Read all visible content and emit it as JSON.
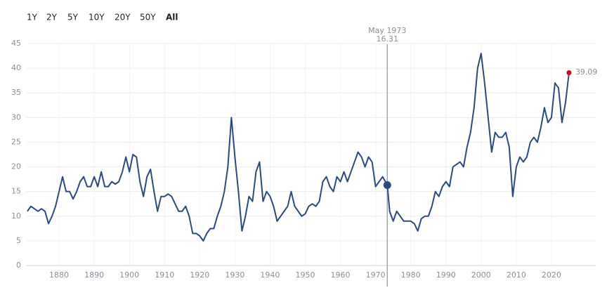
{
  "range_buttons": [
    "1Y",
    "2Y",
    "5Y",
    "10Y",
    "20Y",
    "50Y",
    "All"
  ],
  "selected_range": 6,
  "chart_data": {
    "type": "line",
    "x": [
      1871,
      1872,
      1873,
      1874,
      1875,
      1876,
      1877,
      1878,
      1879,
      1880,
      1881,
      1882,
      1883,
      1884,
      1885,
      1886,
      1887,
      1888,
      1889,
      1890,
      1891,
      1892,
      1893,
      1894,
      1895,
      1896,
      1897,
      1898,
      1899,
      1900,
      1901,
      1902,
      1903,
      1904,
      1905,
      1906,
      1907,
      1908,
      1909,
      1910,
      1911,
      1912,
      1913,
      1914,
      1915,
      1916,
      1917,
      1918,
      1919,
      1920,
      1921,
      1922,
      1923,
      1924,
      1925,
      1926,
      1927,
      1928,
      1929,
      1930,
      1931,
      1932,
      1933,
      1934,
      1935,
      1936,
      1937,
      1938,
      1939,
      1940,
      1941,
      1942,
      1943,
      1944,
      1945,
      1946,
      1947,
      1948,
      1949,
      1950,
      1951,
      1952,
      1953,
      1954,
      1955,
      1956,
      1957,
      1958,
      1959,
      1960,
      1961,
      1962,
      1963,
      1964,
      1965,
      1966,
      1967,
      1968,
      1969,
      1970,
      1971,
      1972,
      1973.33,
      1974,
      1975,
      1976,
      1977,
      1978,
      1979,
      1980,
      1981,
      1982,
      1983,
      1984,
      1985,
      1986,
      1987,
      1988,
      1989,
      1990,
      1991,
      1992,
      1993,
      1994,
      1995,
      1996,
      1997,
      1998,
      1999,
      2000,
      2001,
      2002,
      2003,
      2004,
      2005,
      2006,
      2007,
      2008,
      2009,
      2010,
      2011,
      2012,
      2013,
      2014,
      2015,
      2016,
      2017,
      2018,
      2019,
      2020,
      2021,
      2022,
      2023,
      2024,
      2025
    ],
    "series": [
      {
        "color": "#2b4a7e",
        "values": [
          11,
          12,
          11.5,
          11,
          11.5,
          11,
          8.5,
          10,
          12,
          15,
          18,
          15,
          15,
          13.5,
          15,
          17,
          18,
          16,
          16,
          18,
          16,
          19,
          16,
          16,
          17,
          16.5,
          17,
          19,
          22,
          19,
          22.5,
          22,
          17,
          14,
          18,
          19.5,
          15,
          11,
          14,
          14,
          14.5,
          14,
          12.5,
          11,
          11,
          12,
          10,
          6.5,
          6.5,
          6,
          5,
          6.5,
          7.5,
          7.5,
          10,
          12,
          15,
          20,
          30,
          22,
          15,
          7,
          10,
          14,
          13,
          19,
          21,
          13,
          15,
          14,
          12,
          9,
          10,
          11,
          12,
          15,
          12,
          11,
          10,
          10.5,
          12,
          12.5,
          12,
          13,
          17,
          18,
          16,
          15,
          18,
          17,
          19,
          17,
          19,
          21,
          23,
          22,
          20,
          22,
          21,
          16,
          17,
          18,
          16.31,
          11,
          9,
          11,
          10,
          9,
          9,
          9,
          8.5,
          7,
          9.5,
          10,
          10,
          12,
          15,
          14,
          16,
          17,
          16,
          20,
          20.5,
          21,
          20,
          24,
          27,
          32,
          40,
          43,
          37,
          30,
          23,
          27,
          26,
          26,
          27,
          24,
          14,
          20,
          22,
          21,
          22,
          25,
          26,
          25,
          28,
          32,
          29,
          30,
          37,
          36,
          29,
          33,
          39.09
        ]
      }
    ],
    "last_point_color": "#d0021b",
    "annotation": {
      "x_label": "May 1973",
      "x": 1973.33,
      "value": 16.31
    },
    "xlim": [
      1871,
      2033
    ],
    "xticks": [
      1880,
      1890,
      1900,
      1910,
      1920,
      1930,
      1940,
      1950,
      1960,
      1970,
      1980,
      1990,
      2000,
      2010,
      2020
    ],
    "ylim": [
      0,
      45
    ],
    "yticks": [
      0,
      5,
      10,
      15,
      20,
      25,
      30,
      35,
      40,
      45
    ],
    "grid": true
  }
}
